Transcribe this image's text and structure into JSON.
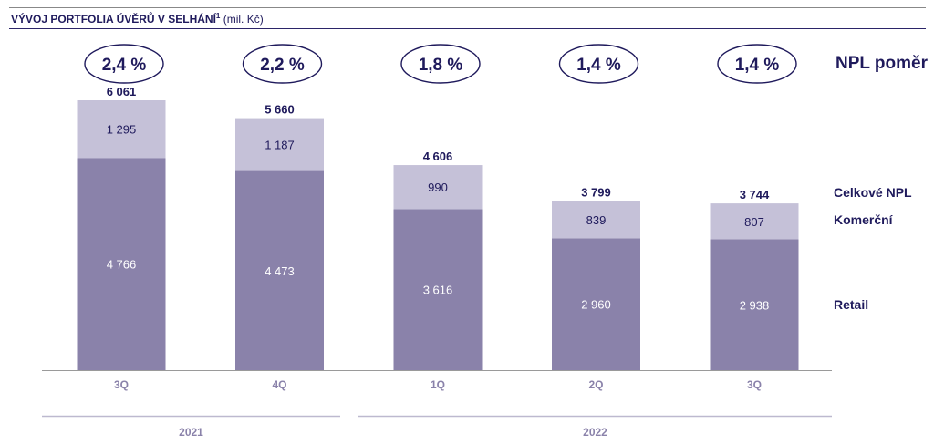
{
  "header": {
    "title": "VÝVOJ PORTFOLIA ÚVĚRŮ V SELHÁNÍ",
    "footnote_marker": "1",
    "subtitle": "(mil. Kč)"
  },
  "colors": {
    "retail": "#8a82aa",
    "komercni": "#c5c1d8",
    "text_dark": "#1f1a5c",
    "axis_label": "#8a82aa"
  },
  "chart_data": {
    "type": "bar",
    "stacked": true,
    "categories": [
      "3Q",
      "4Q",
      "1Q",
      "2Q",
      "3Q"
    ],
    "groups": [
      {
        "label": "2021",
        "categories": [
          0,
          1
        ]
      },
      {
        "label": "2022",
        "categories": [
          2,
          3,
          4
        ]
      }
    ],
    "series": [
      {
        "name": "Retail",
        "values": [
          4766,
          4473,
          3616,
          2960,
          2938
        ],
        "value_labels": [
          "4 766",
          "4 473",
          "3 616",
          "2 960",
          "2 938"
        ]
      },
      {
        "name": "Komerční",
        "values": [
          1295,
          1187,
          990,
          839,
          807
        ],
        "value_labels": [
          "1 295",
          "1 187",
          "990",
          "839",
          "807"
        ]
      }
    ],
    "totals": [
      6061,
      5660,
      4606,
      3799,
      3744
    ],
    "total_labels": [
      "6 061",
      "5 660",
      "4 606",
      "3 799",
      "3 744"
    ],
    "npl_ratio_labels": [
      "2,4 %",
      "2,2 %",
      "1,8 %",
      "1,4 %",
      "1,4 %"
    ],
    "ylim": [
      0,
      6061
    ],
    "grid": false,
    "legend_placement": "right"
  },
  "legend": {
    "npl_ratio": "NPL poměr",
    "total": "Celkové NPL",
    "komercni": "Komerční",
    "retail": "Retail"
  }
}
